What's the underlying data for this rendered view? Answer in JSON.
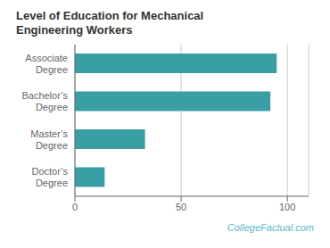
{
  "chart_data": {
    "type": "bar",
    "orientation": "horizontal",
    "title": "Level of Education for Mechanical\nEngineering Workers",
    "categories": [
      "Associate\nDegree",
      "Bachelor’s\nDegree",
      "Master’s\nDegree",
      "Doctor’s\nDegree"
    ],
    "values": [
      95,
      92,
      33,
      14
    ],
    "color": "#3a9ea5",
    "xlim": [
      0,
      110
    ],
    "xticks": [
      0,
      50,
      100
    ],
    "grid": true,
    "annotations": [
      "CollegeFactual.com"
    ]
  }
}
